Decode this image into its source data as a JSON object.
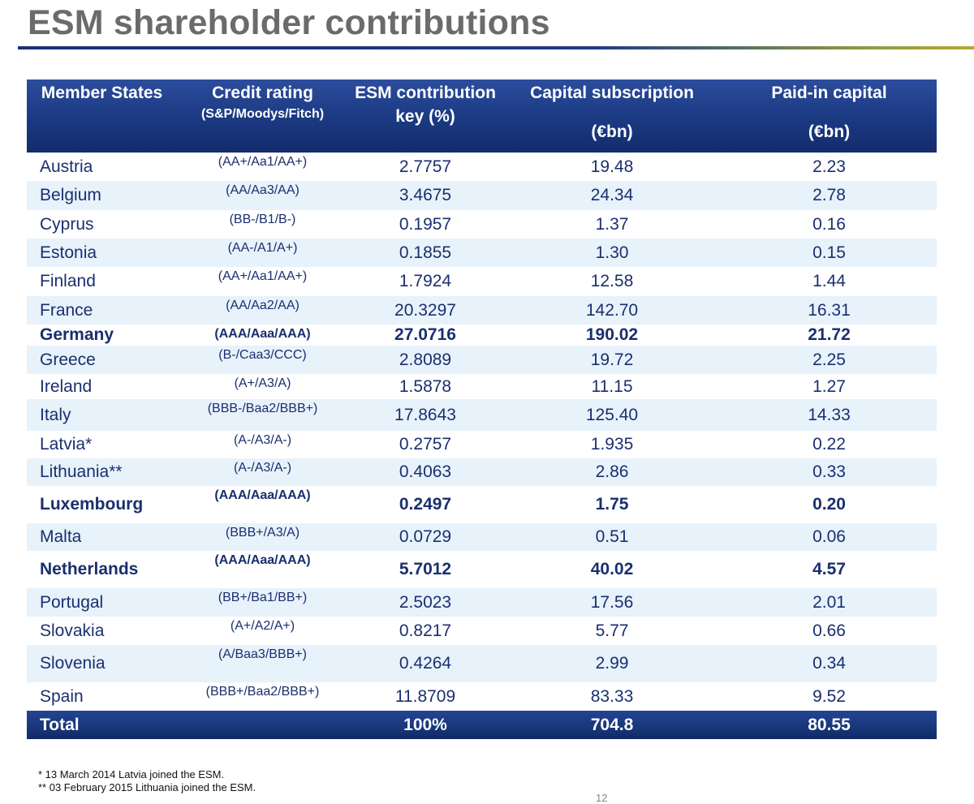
{
  "title": "ESM shareholder contributions",
  "headers": {
    "member": "Member States",
    "credit_main": "Credit rating",
    "credit_sub": "(S&P/Moodys/Fitch)",
    "key": "ESM contribution key (%)",
    "capital_main": "Capital subscription",
    "capital_unit": "(€bn)",
    "paid_main": "Paid-in capital",
    "paid_unit": "(€bn)"
  },
  "rows": [
    {
      "country": "Austria",
      "rating": "(AA+/Aa1/AA+)",
      "key": "2.7757",
      "capital": "19.48",
      "paid": "2.23",
      "bold": false
    },
    {
      "country": "Belgium",
      "rating": "(AA/Aa3/AA)",
      "key": "3.4675",
      "capital": "24.34",
      "paid": "2.78",
      "bold": false
    },
    {
      "country": "Cyprus",
      "rating": "(BB-/B1/B-)",
      "key": "0.1957",
      "capital": "1.37",
      "paid": "0.16",
      "bold": false
    },
    {
      "country": "Estonia",
      "rating": "(AA-/A1/A+)",
      "key": "0.1855",
      "capital": "1.30",
      "paid": "0.15",
      "bold": false
    },
    {
      "country": "Finland",
      "rating": "(AA+/Aa1/AA+)",
      "key": "1.7924",
      "capital": "12.58",
      "paid": "1.44",
      "bold": false
    },
    {
      "country": "France",
      "rating": "(AA/Aa2/AA)",
      "key": "20.3297",
      "capital": "142.70",
      "paid": "16.31",
      "bold": false
    },
    {
      "country": "Germany",
      "rating": "(AAA/Aaa/AAA)",
      "key": "27.0716",
      "capital": "190.02",
      "paid": "21.72",
      "bold": true
    },
    {
      "country": "Greece",
      "rating": "(B-/Caa3/CCC)",
      "key": "2.8089",
      "capital": "19.72",
      "paid": "2.25",
      "bold": false
    },
    {
      "country": "Ireland",
      "rating": "(A+/A3/A)",
      "key": "1.5878",
      "capital": "11.15",
      "paid": "1.27",
      "bold": false
    },
    {
      "country": "Italy",
      "rating": "(BBB-/Baa2/BBB+)",
      "key": "17.8643",
      "capital": "125.40",
      "paid": "14.33",
      "bold": false
    },
    {
      "country": "Latvia*",
      "rating": "(A-/A3/A-)",
      "key": "0.2757",
      "capital": "1.935",
      "paid": "0.22",
      "bold": false
    },
    {
      "country": "Lithuania**",
      "rating": "(A-/A3/A-)",
      "key": "0.4063",
      "capital": "2.86",
      "paid": "0.33",
      "bold": false
    },
    {
      "country": "Luxembourg",
      "rating": "(AAA/Aaa/AAA)",
      "key": "0.2497",
      "capital": "1.75",
      "paid": "0.20",
      "bold": true
    },
    {
      "country": "Malta",
      "rating": "(BBB+/A3/A)",
      "key": "0.0729",
      "capital": "0.51",
      "paid": "0.06",
      "bold": false
    },
    {
      "country": "Netherlands",
      "rating": "(AAA/Aaa/AAA)",
      "key": "5.7012",
      "capital": "40.02",
      "paid": "4.57",
      "bold": true
    },
    {
      "country": "Portugal",
      "rating": "(BB+/Ba1/BB+)",
      "key": "2.5023",
      "capital": "17.56",
      "paid": "2.01",
      "bold": false
    },
    {
      "country": "Slovakia",
      "rating": "(A+/A2/A+)",
      "key": "0.8217",
      "capital": "5.77",
      "paid": "0.66",
      "bold": false
    },
    {
      "country": "Slovenia",
      "rating": "(A/Baa3/BBB+)",
      "key": "0.4264",
      "capital": "2.99",
      "paid": "0.34",
      "bold": false
    },
    {
      "country": "Spain",
      "rating": "(BBB+/Baa2/BBB+)",
      "key": "11.8709",
      "capital": "83.33",
      "paid": "9.52",
      "bold": false
    }
  ],
  "total": {
    "label": "Total",
    "key": "100%",
    "capital": "704.8",
    "paid": "80.55"
  },
  "notes": [
    "* 13 March 2014 Latvia joined the ESM.",
    "** 03 February 2015 Lithuania joined the ESM."
  ],
  "page_number": "12"
}
